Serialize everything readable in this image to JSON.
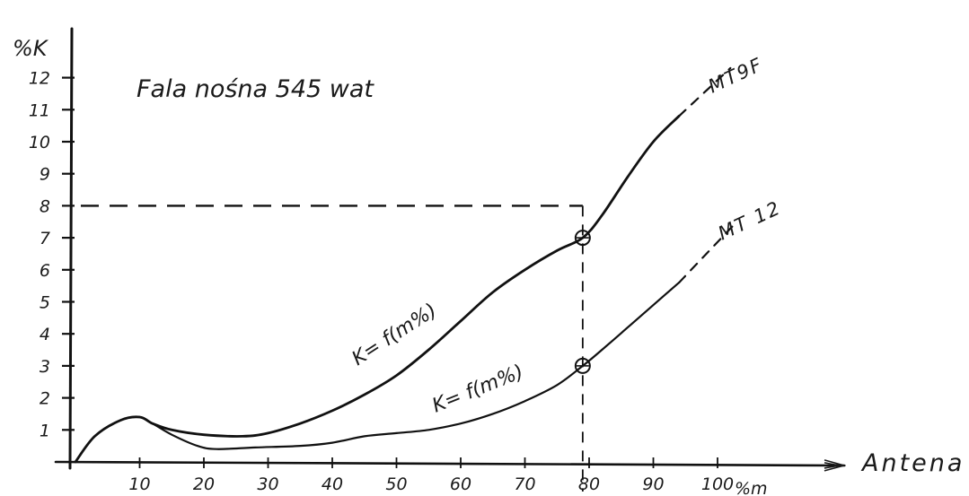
{
  "chart_data": {
    "type": "line",
    "title": "Fala nośna 545 wat",
    "ylabel": "%K",
    "xlabel": "Antena",
    "x_unit_label": "%m",
    "x_ticks": [
      "10",
      "20",
      "30",
      "40",
      "50",
      "60",
      "70",
      "80",
      "90",
      "100"
    ],
    "y_ticks": [
      "1",
      "2",
      "3",
      "4",
      "5",
      "6",
      "7",
      "8",
      "9",
      "10",
      "11",
      "12"
    ],
    "xlim": [
      0,
      110
    ],
    "ylim": [
      0,
      13
    ],
    "series": [
      {
        "name": "MT9F",
        "curve_label": "K= f(m%)",
        "points": [
          [
            0,
            0
          ],
          [
            3,
            0.8
          ],
          [
            7,
            1.3
          ],
          [
            10,
            1.4
          ],
          [
            12,
            1.2
          ],
          [
            15,
            1.0
          ],
          [
            20,
            0.85
          ],
          [
            26,
            0.8
          ],
          [
            30,
            0.9
          ],
          [
            35,
            1.2
          ],
          [
            40,
            1.6
          ],
          [
            45,
            2.1
          ],
          [
            50,
            2.7
          ],
          [
            55,
            3.5
          ],
          [
            60,
            4.4
          ],
          [
            65,
            5.3
          ],
          [
            70,
            6.0
          ],
          [
            75,
            6.6
          ],
          [
            79,
            7.0
          ],
          [
            82,
            7.7
          ],
          [
            86,
            8.9
          ],
          [
            90,
            10.0
          ],
          [
            94,
            10.8
          ]
        ],
        "extension": [
          [
            94,
            10.8
          ],
          [
            102,
            12.3
          ]
        ],
        "marked_point": [
          79,
          7.0
        ]
      },
      {
        "name": "MT 12",
        "curve_label": "K= f(m%)",
        "points": [
          [
            0,
            0
          ],
          [
            3,
            0.8
          ],
          [
            7,
            1.3
          ],
          [
            10,
            1.4
          ],
          [
            12,
            1.2
          ],
          [
            15,
            0.85
          ],
          [
            19,
            0.5
          ],
          [
            22,
            0.4
          ],
          [
            28,
            0.45
          ],
          [
            35,
            0.5
          ],
          [
            40,
            0.6
          ],
          [
            45,
            0.8
          ],
          [
            50,
            0.9
          ],
          [
            55,
            1.0
          ],
          [
            60,
            1.2
          ],
          [
            65,
            1.5
          ],
          [
            70,
            1.9
          ],
          [
            75,
            2.4
          ],
          [
            79,
            3.0
          ],
          [
            82,
            3.5
          ],
          [
            86,
            4.2
          ],
          [
            90,
            4.9
          ],
          [
            94,
            5.6
          ]
        ],
        "extension": [
          [
            94,
            5.6
          ],
          [
            103,
            7.5
          ]
        ],
        "marked_point": [
          79,
          3.0
        ]
      }
    ],
    "guide_lines": {
      "x": 79,
      "y": 8
    },
    "grid": false
  }
}
